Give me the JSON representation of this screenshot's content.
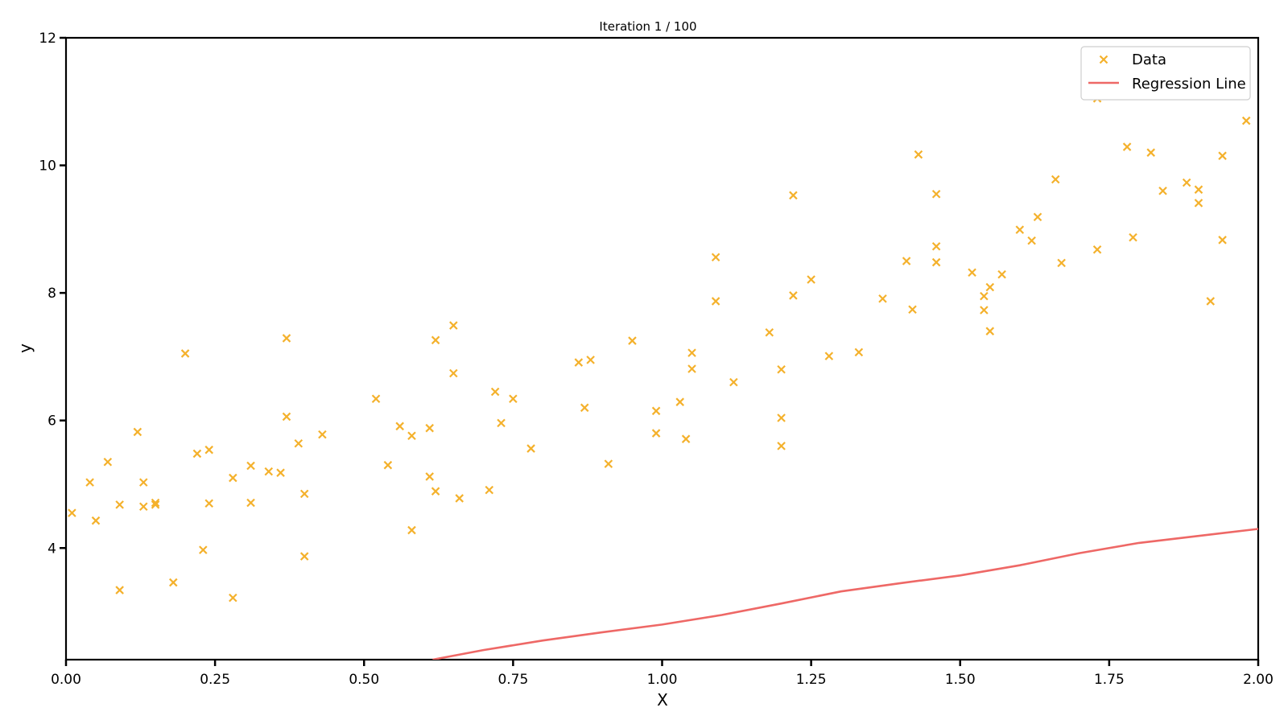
{
  "chart_data": {
    "type": "scatter",
    "title": "Iteration 1 / 100",
    "xlabel": "X",
    "ylabel": "y",
    "xlim": [
      0.0,
      2.0
    ],
    "ylim": [
      2.25,
      12.0
    ],
    "xticks": [
      "0.00",
      "0.25",
      "0.50",
      "0.75",
      "1.00",
      "1.25",
      "1.50",
      "1.75",
      "2.00"
    ],
    "yticks": [
      "4",
      "6",
      "8",
      "10",
      "12"
    ],
    "grid": false,
    "legend": {
      "placement": "top-right",
      "entries": [
        {
          "label": "Data",
          "marker": "x",
          "color": "#f4b12c"
        },
        {
          "label": "Regression Line",
          "marker": "line",
          "color": "#ee6866"
        }
      ]
    },
    "series": [
      {
        "name": "Data",
        "kind": "scatter",
        "color": "#f4b12c",
        "points": [
          [
            0.01,
            4.55
          ],
          [
            0.04,
            5.03
          ],
          [
            0.05,
            4.43
          ],
          [
            0.07,
            5.35
          ],
          [
            0.09,
            3.34
          ],
          [
            0.09,
            4.68
          ],
          [
            0.12,
            5.82
          ],
          [
            0.13,
            5.03
          ],
          [
            0.13,
            4.65
          ],
          [
            0.15,
            4.68
          ],
          [
            0.15,
            4.71
          ],
          [
            0.18,
            3.46
          ],
          [
            0.2,
            7.05
          ],
          [
            0.22,
            5.48
          ],
          [
            0.23,
            3.97
          ],
          [
            0.24,
            5.54
          ],
          [
            0.24,
            4.7
          ],
          [
            0.28,
            5.1
          ],
          [
            0.28,
            3.22
          ],
          [
            0.31,
            5.29
          ],
          [
            0.31,
            4.71
          ],
          [
            0.34,
            5.2
          ],
          [
            0.36,
            5.18
          ],
          [
            0.37,
            6.06
          ],
          [
            0.37,
            7.29
          ],
          [
            0.39,
            5.64
          ],
          [
            0.4,
            4.85
          ],
          [
            0.4,
            3.87
          ],
          [
            0.43,
            5.78
          ],
          [
            0.52,
            6.34
          ],
          [
            0.54,
            5.3
          ],
          [
            0.56,
            5.91
          ],
          [
            0.58,
            5.76
          ],
          [
            0.58,
            4.28
          ],
          [
            0.61,
            5.88
          ],
          [
            0.61,
            5.12
          ],
          [
            0.62,
            4.89
          ],
          [
            0.62,
            7.26
          ],
          [
            0.65,
            7.49
          ],
          [
            0.65,
            6.74
          ],
          [
            0.66,
            4.78
          ],
          [
            0.71,
            4.91
          ],
          [
            0.72,
            6.45
          ],
          [
            0.73,
            5.96
          ],
          [
            0.75,
            6.34
          ],
          [
            0.78,
            5.56
          ],
          [
            0.86,
            6.91
          ],
          [
            0.87,
            6.2
          ],
          [
            0.88,
            6.95
          ],
          [
            0.91,
            5.32
          ],
          [
            0.95,
            7.25
          ],
          [
            0.99,
            6.15
          ],
          [
            0.99,
            5.8
          ],
          [
            1.03,
            6.29
          ],
          [
            1.04,
            5.71
          ],
          [
            1.05,
            7.06
          ],
          [
            1.05,
            6.81
          ],
          [
            1.09,
            8.56
          ],
          [
            1.09,
            7.87
          ],
          [
            1.12,
            6.6
          ],
          [
            1.18,
            7.38
          ],
          [
            1.2,
            6.04
          ],
          [
            1.2,
            5.6
          ],
          [
            1.2,
            6.8
          ],
          [
            1.22,
            9.53
          ],
          [
            1.22,
            7.96
          ],
          [
            1.25,
            8.21
          ],
          [
            1.28,
            7.01
          ],
          [
            1.33,
            7.07
          ],
          [
            1.37,
            7.91
          ],
          [
            1.41,
            8.5
          ],
          [
            1.42,
            7.74
          ],
          [
            1.43,
            10.17
          ],
          [
            1.46,
            9.55
          ],
          [
            1.46,
            8.73
          ],
          [
            1.46,
            8.48
          ],
          [
            1.52,
            8.32
          ],
          [
            1.54,
            7.95
          ],
          [
            1.54,
            7.73
          ],
          [
            1.55,
            7.4
          ],
          [
            1.55,
            8.09
          ],
          [
            1.57,
            8.29
          ],
          [
            1.6,
            8.99
          ],
          [
            1.62,
            8.82
          ],
          [
            1.63,
            9.19
          ],
          [
            1.66,
            9.78
          ],
          [
            1.67,
            8.47
          ],
          [
            1.73,
            11.05
          ],
          [
            1.73,
            8.68
          ],
          [
            1.78,
            10.29
          ],
          [
            1.79,
            8.87
          ],
          [
            1.82,
            10.2
          ],
          [
            1.84,
            9.6
          ],
          [
            1.88,
            9.73
          ],
          [
            1.9,
            9.62
          ],
          [
            1.9,
            9.41
          ],
          [
            1.92,
            7.87
          ],
          [
            1.94,
            10.15
          ],
          [
            1.94,
            8.83
          ],
          [
            1.98,
            10.7
          ]
        ]
      },
      {
        "name": "Regression Line",
        "kind": "line",
        "color": "#ee6866",
        "points": [
          [
            0.615,
            2.25
          ],
          [
            0.7,
            2.4
          ],
          [
            0.8,
            2.55
          ],
          [
            0.9,
            2.68
          ],
          [
            1.0,
            2.8
          ],
          [
            1.1,
            2.95
          ],
          [
            1.2,
            3.13
          ],
          [
            1.3,
            3.32
          ],
          [
            1.4,
            3.45
          ],
          [
            1.5,
            3.57
          ],
          [
            1.6,
            3.73
          ],
          [
            1.7,
            3.92
          ],
          [
            1.8,
            4.08
          ],
          [
            1.9,
            4.19
          ],
          [
            2.0,
            4.3
          ]
        ]
      }
    ]
  }
}
